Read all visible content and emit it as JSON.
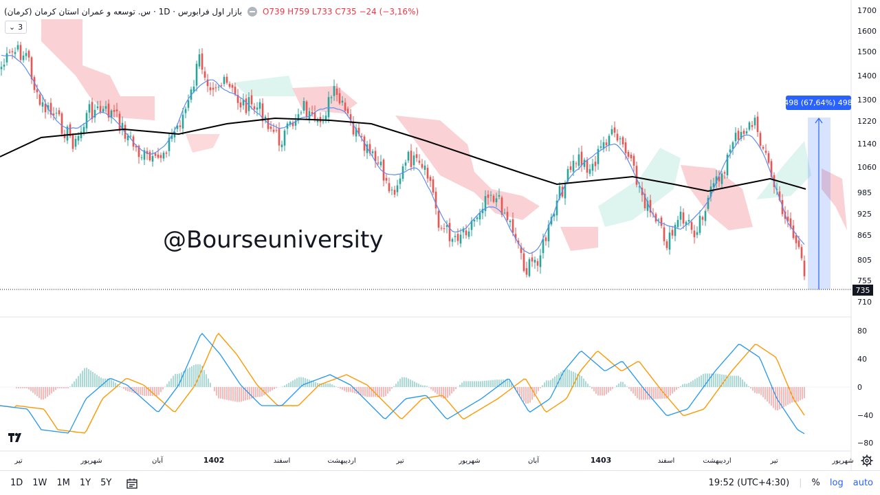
{
  "legend": {
    "title": "بازار اول فرابورس · 1D · س. توسعه و عمران استان کرمان (کرمان)",
    "open_label": "O",
    "open": "739",
    "high_label": "H",
    "high": "759",
    "low_label": "L",
    "low": "733",
    "close_label": "C",
    "close": "735",
    "change": "−24 (−3,16%)"
  },
  "collapse_count": "3",
  "watermark": "@Bourseuniversity",
  "measure_label": "498 (67,64%) 498",
  "price_tag": "735",
  "price_axis": [
    "1700",
    "1600",
    "1500",
    "1400",
    "1300",
    "1220",
    "1140",
    "1060",
    "985",
    "925",
    "865",
    "805",
    "755",
    "710"
  ],
  "macd_axis": [
    "80",
    "40",
    "0",
    "−40",
    "−80"
  ],
  "time_axis": [
    "تیر",
    "شهریور",
    "آبان",
    "1402",
    "اسفند",
    "اردیبهشت",
    "تیر",
    "شهریور",
    "آبان",
    "1403",
    "اسفند",
    "اردیبهشت",
    "تیر",
    "شهریور"
  ],
  "timeframes": [
    "1D",
    "1W",
    "1M",
    "1Y",
    "5Y"
  ],
  "clock": "19:52 (UTC+4:30)",
  "tools": {
    "percent": "%",
    "log": "log",
    "auto": "auto"
  },
  "colors": {
    "up": "#26a69a",
    "down": "#ef5350",
    "accent": "#2962ff",
    "macd": "#2196f3",
    "signal": "#ff9800",
    "kumo_bear": "#f8bbc0",
    "kumo_bull": "#d6f2ec",
    "ma": "#000000"
  }
}
